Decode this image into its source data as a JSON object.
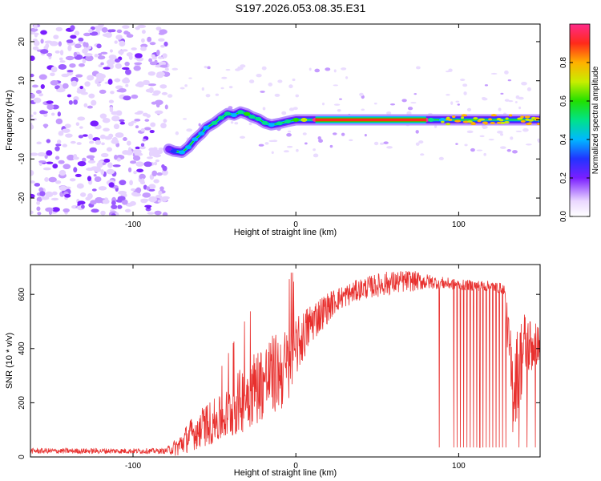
{
  "title": "S197.2026.053.08.35.E31",
  "chart_data": [
    {
      "type": "heatmap",
      "xlabel": "Height of straight line (km)",
      "ylabel": "Frequency (Hz)",
      "xlim": [
        -163,
        150
      ],
      "ylim": [
        -24.5,
        24.5
      ],
      "x_ticks": [
        -100,
        0,
        100
      ],
      "y_ticks": [
        -20,
        -10,
        0,
        10,
        20
      ],
      "colorbar": {
        "label": "Normalized spectral amplitude",
        "range": [
          0,
          1
        ],
        "ticks": [
          0.0,
          0.2,
          0.4,
          0.6,
          0.8
        ]
      },
      "noise_region": {
        "x_from": -163,
        "x_to": -79,
        "amplitude": 0.1
      },
      "ridge": {
        "points": [
          {
            "x": -78,
            "y": -7.5,
            "amp": 0.15
          },
          {
            "x": -75,
            "y": -8.0,
            "amp": 0.22
          },
          {
            "x": -70,
            "y": -8.3,
            "amp": 0.35
          },
          {
            "x": -66,
            "y": -7.0,
            "amp": 0.3
          },
          {
            "x": -62,
            "y": -5.0,
            "amp": 0.32
          },
          {
            "x": -58,
            "y": -3.5,
            "amp": 0.3
          },
          {
            "x": -55,
            "y": -2.0,
            "amp": 0.34
          },
          {
            "x": -50,
            "y": -0.8,
            "amp": 0.4
          },
          {
            "x": -46,
            "y": 0.5,
            "amp": 0.42
          },
          {
            "x": -42,
            "y": 1.6,
            "amp": 0.45
          },
          {
            "x": -38,
            "y": 1.2,
            "amp": 0.38
          },
          {
            "x": -34,
            "y": 2.0,
            "amp": 0.45
          },
          {
            "x": -30,
            "y": 1.5,
            "amp": 0.5
          },
          {
            "x": -27,
            "y": 0.8,
            "amp": 0.48
          },
          {
            "x": -23,
            "y": 0.2,
            "amp": 0.42
          },
          {
            "x": -19,
            "y": -0.8,
            "amp": 0.4
          },
          {
            "x": -15,
            "y": -1.3,
            "amp": 0.38
          },
          {
            "x": -10,
            "y": -0.9,
            "amp": 0.4
          },
          {
            "x": -5,
            "y": -0.4,
            "amp": 0.45
          },
          {
            "x": 0,
            "y": 0.0,
            "amp": 0.55
          },
          {
            "x": 5,
            "y": 0.0,
            "amp": 0.7
          },
          {
            "x": 12,
            "y": 0.0,
            "amp": 0.92
          },
          {
            "x": 80,
            "y": 0.0,
            "amp": 0.92
          },
          {
            "x": 83,
            "y": 0.0,
            "amp": 0.45
          },
          {
            "x": 90,
            "y": 0.0,
            "amp": 0.35
          },
          {
            "x": 150,
            "y": 0.0,
            "amp": 0.38
          }
        ],
        "steady_segment": {
          "x_from": 12,
          "x_to": 80,
          "y": 0.0,
          "amp": 0.92
        }
      },
      "grid": false
    },
    {
      "type": "line",
      "xlabel": "Height of straight line (km)",
      "ylabel": "SNR (10 * v/v)",
      "xlim": [
        -163,
        150
      ],
      "ylim": [
        0,
        710
      ],
      "x_ticks": [
        -100,
        0,
        100
      ],
      "y_ticks": [
        0,
        200,
        400,
        600
      ],
      "color": "#e8302e",
      "series": [
        {
          "envelope": [
            {
              "x": -163,
              "mean": 22,
              "spread": 10
            },
            {
              "x": -80,
              "mean": 22,
              "spread": 10
            },
            {
              "x": -72,
              "mean": 40,
              "spread": 40
            },
            {
              "x": -65,
              "mean": 80,
              "spread": 60
            },
            {
              "x": -55,
              "mean": 120,
              "spread": 80
            },
            {
              "x": -45,
              "mean": 140,
              "spread": 90
            },
            {
              "x": -35,
              "mean": 200,
              "spread": 120
            },
            {
              "x": -25,
              "mean": 260,
              "spread": 140
            },
            {
              "x": -15,
              "mean": 300,
              "spread": 150
            },
            {
              "x": -5,
              "mean": 330,
              "spread": 150
            },
            {
              "x": 0,
              "mean": 400,
              "spread": 110
            },
            {
              "x": 10,
              "mean": 500,
              "spread": 80
            },
            {
              "x": 25,
              "mean": 580,
              "spread": 45
            },
            {
              "x": 40,
              "mean": 620,
              "spread": 40
            },
            {
              "x": 55,
              "mean": 640,
              "spread": 45
            },
            {
              "x": 70,
              "mean": 650,
              "spread": 40
            },
            {
              "x": 85,
              "mean": 645,
              "spread": 25
            },
            {
              "x": 100,
              "mean": 635,
              "spread": 20
            },
            {
              "x": 120,
              "mean": 630,
              "spread": 20
            },
            {
              "x": 128,
              "mean": 620,
              "spread": 20
            },
            {
              "x": 133,
              "mean": 250,
              "spread": 180
            },
            {
              "x": 140,
              "mean": 400,
              "spread": 150
            },
            {
              "x": 150,
              "mean": 420,
              "spread": 60
            }
          ],
          "dropouts_x": [
            88,
            97,
            99,
            101,
            103,
            105,
            107,
            109,
            111,
            113,
            115,
            117,
            119,
            121,
            123,
            125,
            127,
            129,
            137,
            142,
            147
          ],
          "dropout_value": 35
        }
      ],
      "grid": false
    }
  ]
}
